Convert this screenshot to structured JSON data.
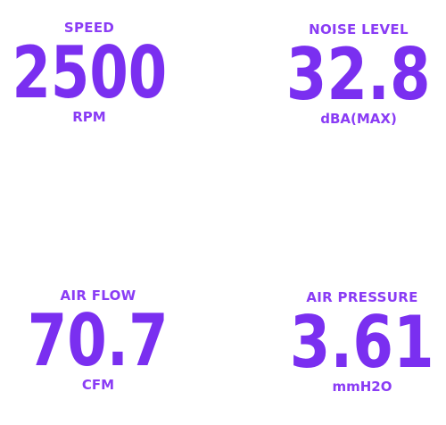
{
  "specs": {
    "speed": {
      "label": "SPEED",
      "value": "2500",
      "unit": "RPM"
    },
    "noise": {
      "label": "NOISE LEVEL",
      "value": "32.8",
      "unit": "dBA(MAX)"
    },
    "airflow": {
      "label": "AIR FLOW",
      "value": "70.7",
      "unit": "CFM"
    },
    "pressure": {
      "label": "AIR PRESSURE",
      "value": "3.61",
      "unit": "mmH2O"
    }
  },
  "colors": {
    "accent": "#7a2ff0",
    "background": "#ffffff"
  }
}
